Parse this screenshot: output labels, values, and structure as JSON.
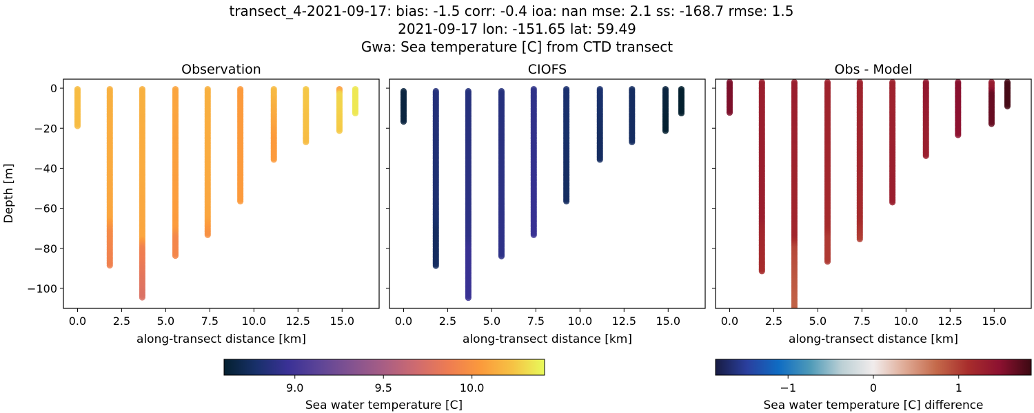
{
  "title_lines": [
    "transect_4-2021-09-17: bias: -1.5  corr: -0.4  ioa: nan  mse: 2.1  ss: -168.7  rmse: 1.5",
    "2021-09-17 lon: -151.65 lat: 59.49",
    "Gwa: Sea temperature [C] from CTD transect"
  ],
  "chart_data": [
    {
      "type": "scatter",
      "title": "Observation",
      "xlabel": "along-transect distance [km]",
      "ylabel": "Depth [m]",
      "xlim": [
        -0.8,
        17.1
      ],
      "ylim": [
        -110,
        4.5
      ],
      "xticks": [
        "0.0",
        "2.5",
        "5.0",
        "7.5",
        "10.0",
        "12.5",
        "15.0"
      ],
      "yticks": [
        "0",
        "−20",
        "−40",
        "−60",
        "−80",
        "−100"
      ],
      "field": "obs",
      "colormap": "thermal",
      "grid": false
    },
    {
      "type": "scatter",
      "title": "CIOFS",
      "xlabel": "along-transect distance [km]",
      "xlim": [
        -0.8,
        17.1
      ],
      "ylim": [
        -110,
        4.5
      ],
      "xticks": [
        "0.0",
        "2.5",
        "5.0",
        "7.5",
        "10.0",
        "12.5",
        "15.0"
      ],
      "field": "model",
      "colormap": "thermal",
      "grid": false
    },
    {
      "type": "scatter",
      "title": "Obs - Model",
      "xlabel": "along-transect distance [km]",
      "xlim": [
        -0.8,
        17.1
      ],
      "ylim": [
        -110,
        4.5
      ],
      "xticks": [
        "0.0",
        "2.5",
        "5.0",
        "7.5",
        "10.0",
        "12.5",
        "15.0"
      ],
      "field": "diff",
      "colormap": "balance",
      "grid": false
    }
  ],
  "stations": [
    {
      "x": 0.0,
      "obs_depth": [
        -0.5,
        -19
      ],
      "model_depth": [
        -1.5,
        -17
      ],
      "diff_depth": [
        3,
        -13
      ],
      "profile": [
        [
          0,
          10.2,
          8.65
        ],
        [
          -19,
          10.2,
          8.65
        ]
      ]
    },
    {
      "x": 1.83,
      "obs_depth": [
        -0.5,
        -89
      ],
      "model_depth": [
        -1.5,
        -89
      ],
      "diff_depth": [
        3,
        -92
      ],
      "profile": [
        [
          0,
          10.15,
          8.85
        ],
        [
          -65,
          10.1,
          8.8
        ],
        [
          -72,
          9.95,
          8.75
        ],
        [
          -92,
          9.88,
          8.75
        ]
      ]
    },
    {
      "x": 3.67,
      "obs_depth": [
        -0.5,
        -105
      ],
      "model_depth": [
        -1.5,
        -105
      ],
      "diff_depth": [
        3,
        -112
      ],
      "profile": [
        [
          0,
          10.15,
          8.85
        ],
        [
          -75,
          10.1,
          8.9
        ],
        [
          -80,
          9.9,
          8.95
        ],
        [
          -95,
          9.8,
          8.95
        ],
        [
          -112,
          9.72,
          8.95
        ]
      ]
    },
    {
      "x": 5.55,
      "obs_depth": [
        -0.5,
        -84
      ],
      "model_depth": [
        -1.5,
        -84
      ],
      "diff_depth": [
        3,
        -87
      ],
      "profile": [
        [
          0,
          10.1,
          8.85
        ],
        [
          -70,
          10.05,
          8.9
        ],
        [
          -75,
          9.93,
          8.9
        ],
        [
          -87,
          9.93,
          8.9
        ]
      ]
    },
    {
      "x": 7.38,
      "obs_depth": [
        -0.5,
        -74
      ],
      "model_depth": [
        -0.5,
        -74
      ],
      "diff_depth": [
        3,
        -76
      ],
      "profile": [
        [
          0,
          10.15,
          8.9
        ],
        [
          -65,
          10.1,
          8.95
        ],
        [
          -76,
          9.95,
          8.95
        ]
      ]
    },
    {
      "x": 9.23,
      "obs_depth": [
        -0.5,
        -57
      ],
      "model_depth": [
        -0.5,
        -57
      ],
      "diff_depth": [
        3,
        -57
      ],
      "profile": [
        [
          0,
          10.05,
          8.8
        ],
        [
          -57,
          10.05,
          8.75
        ]
      ]
    },
    {
      "x": 11.13,
      "obs_depth": [
        -0.5,
        -36
      ],
      "model_depth": [
        -0.5,
        -36
      ],
      "diff_depth": [
        3,
        -34
      ],
      "profile": [
        [
          0,
          10.2,
          8.8
        ],
        [
          -25,
          10.05,
          8.75
        ],
        [
          -36,
          10.05,
          8.75
        ]
      ]
    },
    {
      "x": 12.95,
      "obs_depth": [
        -0.5,
        -27
      ],
      "model_depth": [
        -0.5,
        -27
      ],
      "diff_depth": [
        3,
        -24
      ],
      "profile": [
        [
          0,
          10.25,
          8.75
        ],
        [
          -27,
          10.2,
          8.75
        ]
      ]
    },
    {
      "x": 14.85,
      "obs_depth": [
        -0.5,
        -22
      ],
      "model_depth": [
        -0.5,
        -22
      ],
      "diff_depth": [
        3,
        -18
      ],
      "profile": [
        [
          0,
          10.0,
          8.65
        ],
        [
          -3,
          10.3,
          8.65
        ],
        [
          -22,
          10.25,
          8.6
        ]
      ]
    },
    {
      "x": 15.75,
      "obs_depth": [
        -0.5,
        -13
      ],
      "model_depth": [
        -0.5,
        -13
      ],
      "diff_depth": [
        3,
        -9
      ],
      "profile": [
        [
          0,
          10.35,
          8.55
        ],
        [
          -13,
          10.35,
          8.55
        ]
      ]
    }
  ],
  "colorbars": [
    {
      "label": "Sea water temperature [C]",
      "range": [
        8.6,
        10.41
      ],
      "ticks": [
        9.0,
        9.5,
        10.0
      ],
      "tick_labels": [
        "9.0",
        "9.5",
        "10.0"
      ],
      "colormap": "thermal"
    },
    {
      "label": "Sea water temperature [C] difference",
      "range": [
        -1.85,
        1.85
      ],
      "ticks": [
        -1,
        0,
        1
      ],
      "tick_labels": [
        "−1",
        "0",
        "1"
      ],
      "colormap": "balance"
    }
  ],
  "colormaps": {
    "thermal": [
      "#04202f",
      "#18306a",
      "#3a3196",
      "#5e4597",
      "#845390",
      "#a95e84",
      "#cf6b6f",
      "#ee7c52",
      "#fb9a3c",
      "#f6c244",
      "#e8fa5b"
    ],
    "balance": [
      "#181c43",
      "#2a3f9e",
      "#0f6cc3",
      "#4e9ab8",
      "#bcd0d5",
      "#f1ecec",
      "#dfaa95",
      "#c4694a",
      "#a82d2c",
      "#8c1130",
      "#3c0912"
    ]
  }
}
